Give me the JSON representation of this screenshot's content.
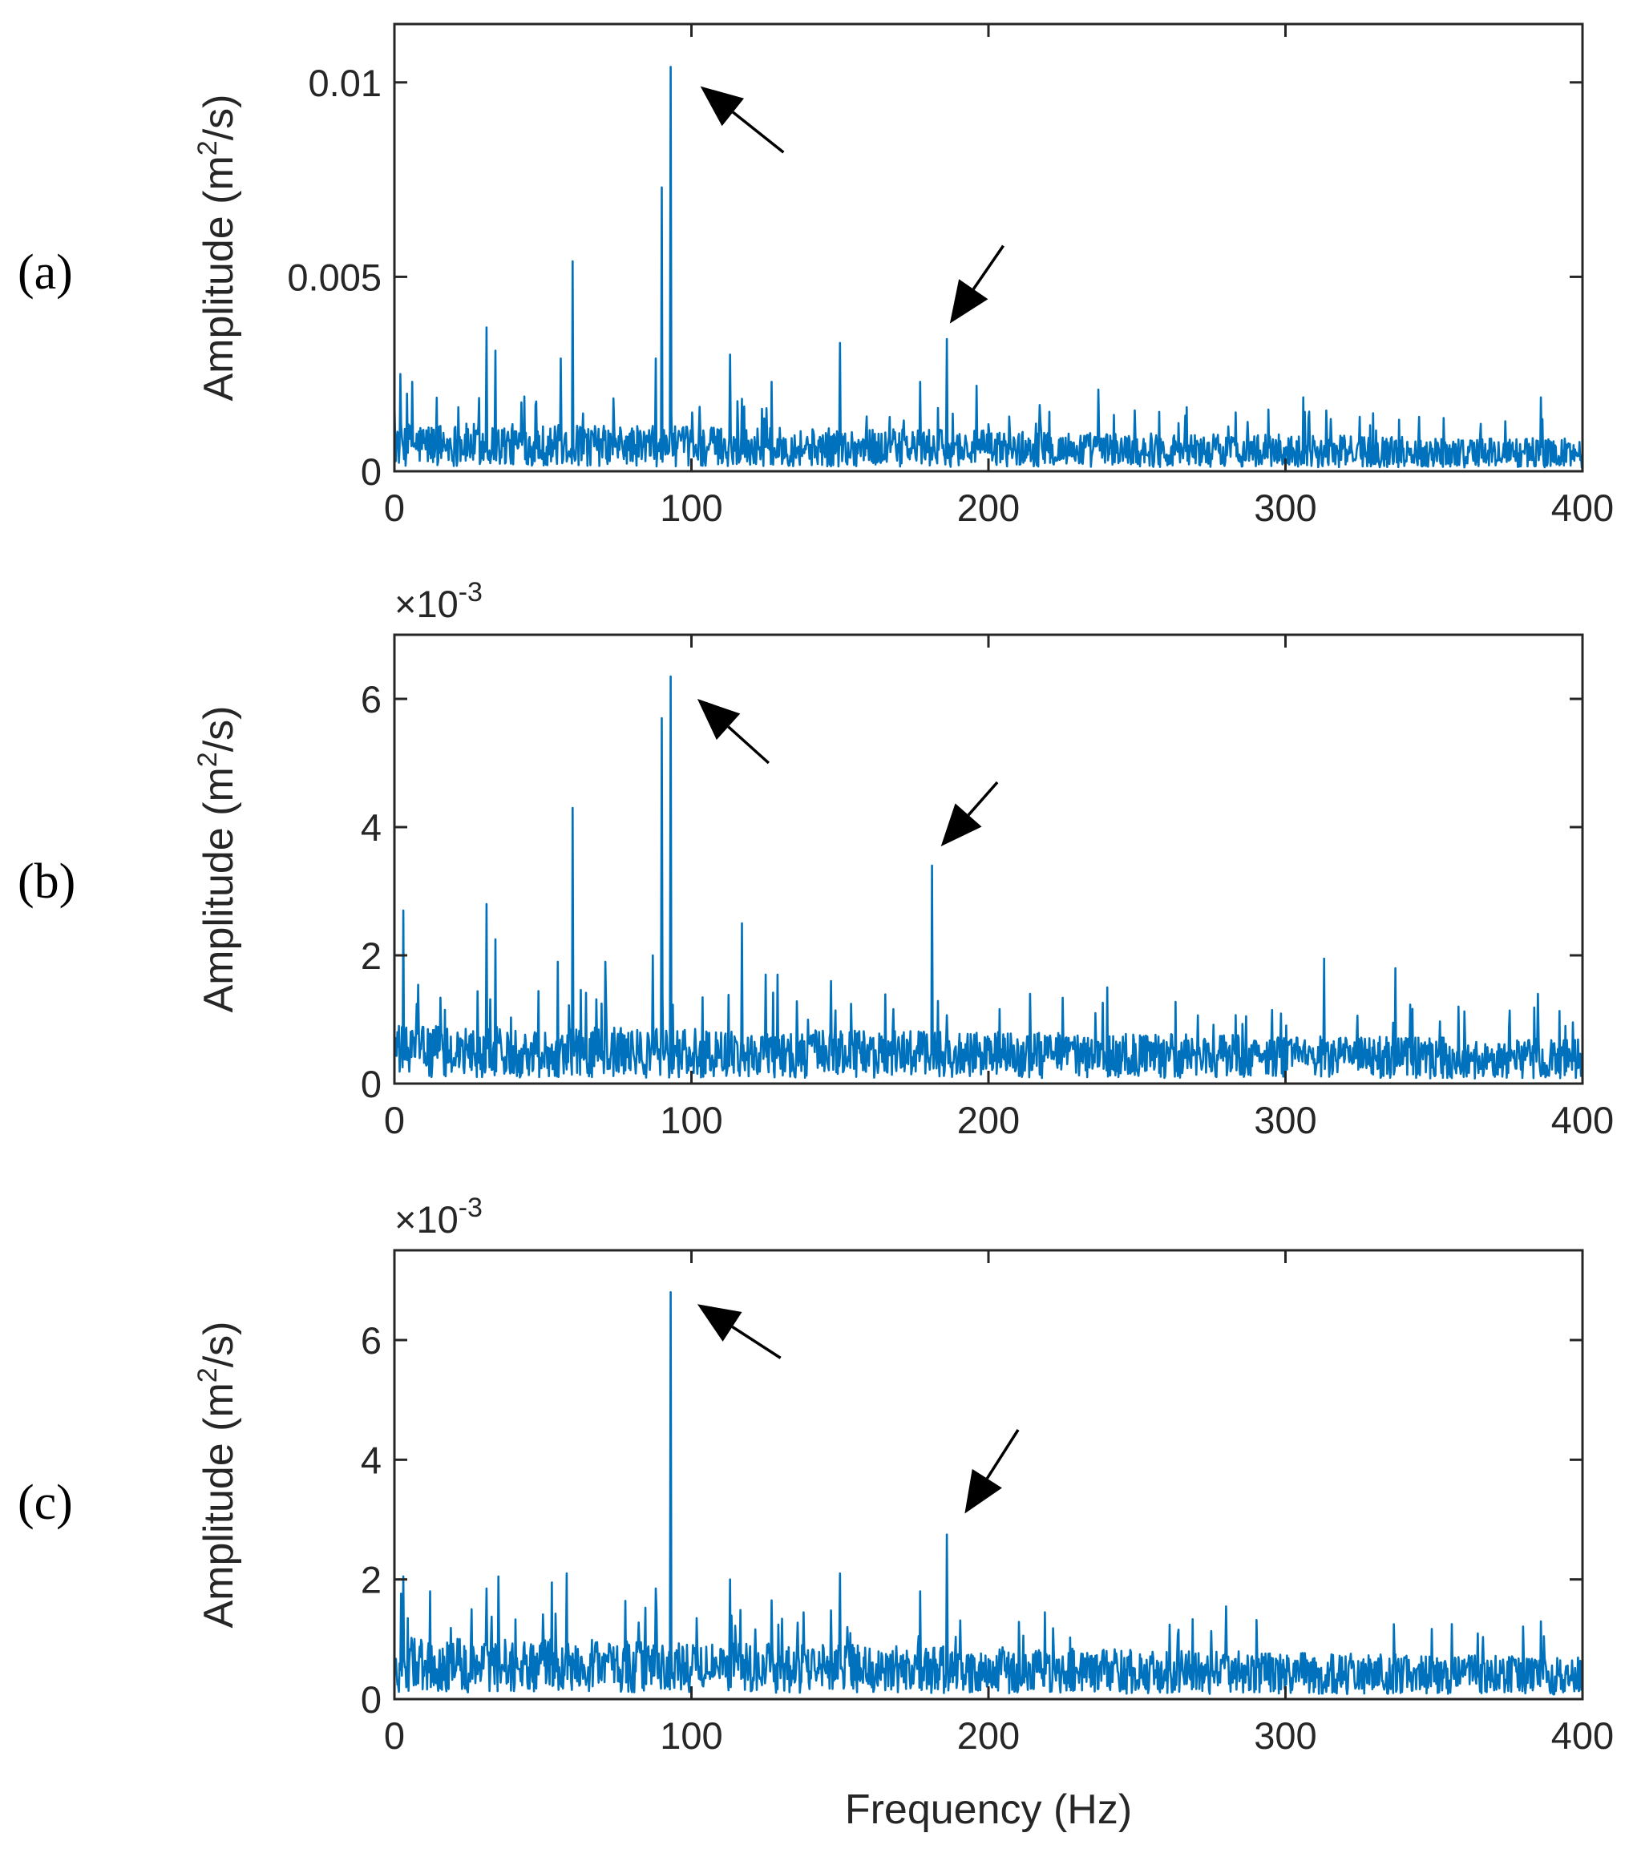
{
  "figure": {
    "xlabel": "Frequency (Hz)"
  },
  "chart_data": [
    {
      "panel_label": "(a)",
      "type": "line",
      "ylabel": "Amplitude (m",
      "ylabel_sup": "2",
      "ylabel_end": "/s)",
      "exponent_text": "",
      "xlim": [
        0,
        400
      ],
      "ylim": [
        0,
        0.0115
      ],
      "xticks": [
        0,
        100,
        200,
        300,
        400
      ],
      "xtick_labels": [
        "0",
        "100",
        "200",
        "300",
        "400"
      ],
      "yticks": [
        0,
        0.005,
        0.01
      ],
      "ytick_labels": [
        "0",
        "0.005",
        "0.01"
      ],
      "noise_baseline": 0.0009,
      "noise_decay": 0.0003,
      "peaks": [
        {
          "x": 2,
          "y": 0.0025
        },
        {
          "x": 6,
          "y": 0.0023
        },
        {
          "x": 31,
          "y": 0.0037
        },
        {
          "x": 34,
          "y": 0.0031
        },
        {
          "x": 56,
          "y": 0.0029
        },
        {
          "x": 60,
          "y": 0.0054
        },
        {
          "x": 88,
          "y": 0.0029
        },
        {
          "x": 90,
          "y": 0.0073
        },
        {
          "x": 93,
          "y": 0.0104
        },
        {
          "x": 113,
          "y": 0.003
        },
        {
          "x": 127,
          "y": 0.0023
        },
        {
          "x": 150,
          "y": 0.0033
        },
        {
          "x": 177,
          "y": 0.0023
        },
        {
          "x": 186,
          "y": 0.0034
        },
        {
          "x": 196,
          "y": 0.0022
        },
        {
          "x": 237,
          "y": 0.0021
        },
        {
          "x": 306,
          "y": 0.0019
        },
        {
          "x": 386,
          "y": 0.0019
        }
      ],
      "arrows": [
        {
          "tail_x": 131,
          "tail_y": 0.0082,
          "tip_x": 103,
          "tip_y": 0.0099
        },
        {
          "tail_x": 205,
          "tail_y": 0.0058,
          "tip_x": 187,
          "tip_y": 0.0038
        }
      ]
    },
    {
      "panel_label": "(b)",
      "type": "line",
      "ylabel": "Amplitude (m",
      "ylabel_sup": "2",
      "ylabel_end": "/s)",
      "exponent_text": "×10",
      "exponent_sup": "-3",
      "xlim": [
        0,
        400
      ],
      "ylim": [
        0,
        7
      ],
      "xticks": [
        0,
        100,
        200,
        300,
        400
      ],
      "xtick_labels": [
        "0",
        "100",
        "200",
        "300",
        "400"
      ],
      "yticks": [
        0,
        2,
        4,
        6
      ],
      "ytick_labels": [
        "0",
        "2",
        "4",
        "6"
      ],
      "noise_baseline": 0.65,
      "noise_decay": 0.15,
      "peaks": [
        {
          "x": 3,
          "y": 2.7
        },
        {
          "x": 31,
          "y": 2.8
        },
        {
          "x": 34,
          "y": 2.25
        },
        {
          "x": 55,
          "y": 1.9
        },
        {
          "x": 60,
          "y": 4.3
        },
        {
          "x": 71,
          "y": 1.9
        },
        {
          "x": 87,
          "y": 2.0
        },
        {
          "x": 90,
          "y": 5.7
        },
        {
          "x": 93,
          "y": 6.35
        },
        {
          "x": 117,
          "y": 2.5
        },
        {
          "x": 125,
          "y": 1.7
        },
        {
          "x": 129,
          "y": 1.7
        },
        {
          "x": 147,
          "y": 1.6
        },
        {
          "x": 181,
          "y": 3.4
        },
        {
          "x": 214,
          "y": 1.4
        },
        {
          "x": 240,
          "y": 1.5
        },
        {
          "x": 313,
          "y": 1.95
        },
        {
          "x": 337,
          "y": 1.8
        },
        {
          "x": 385,
          "y": 1.4
        }
      ],
      "arrows": [
        {
          "tail_x": 126,
          "tail_y": 5.0,
          "tip_x": 102,
          "tip_y": 6.0
        },
        {
          "tail_x": 203,
          "tail_y": 4.7,
          "tip_x": 184,
          "tip_y": 3.7
        }
      ]
    },
    {
      "panel_label": "(c)",
      "type": "line",
      "ylabel": "Amplitude (m",
      "ylabel_sup": "2",
      "ylabel_end": "/s)",
      "exponent_text": "×10",
      "exponent_sup": "-3",
      "xlim": [
        0,
        400
      ],
      "ylim": [
        0,
        7.5
      ],
      "xticks": [
        0,
        100,
        200,
        300,
        400
      ],
      "xtick_labels": [
        "0",
        "100",
        "200",
        "300",
        "400"
      ],
      "yticks": [
        0,
        2,
        4,
        6
      ],
      "ytick_labels": [
        "0",
        "2",
        "4",
        "6"
      ],
      "noise_baseline": 0.75,
      "noise_decay": 0.25,
      "peaks": [
        {
          "x": 3,
          "y": 2.05
        },
        {
          "x": 12,
          "y": 1.8
        },
        {
          "x": 31,
          "y": 1.85
        },
        {
          "x": 35,
          "y": 2.05
        },
        {
          "x": 53,
          "y": 1.95
        },
        {
          "x": 58,
          "y": 2.1
        },
        {
          "x": 88,
          "y": 1.85
        },
        {
          "x": 93,
          "y": 6.8
        },
        {
          "x": 113,
          "y": 2.0
        },
        {
          "x": 127,
          "y": 1.65
        },
        {
          "x": 150,
          "y": 2.1
        },
        {
          "x": 177,
          "y": 1.8
        },
        {
          "x": 186,
          "y": 2.75
        },
        {
          "x": 219,
          "y": 1.45
        },
        {
          "x": 280,
          "y": 1.55
        },
        {
          "x": 386,
          "y": 1.3
        }
      ],
      "arrows": [
        {
          "tail_x": 130,
          "tail_y": 5.7,
          "tip_x": 102,
          "tip_y": 6.6
        },
        {
          "tail_x": 210,
          "tail_y": 4.5,
          "tip_x": 192,
          "tip_y": 3.1
        }
      ]
    }
  ]
}
